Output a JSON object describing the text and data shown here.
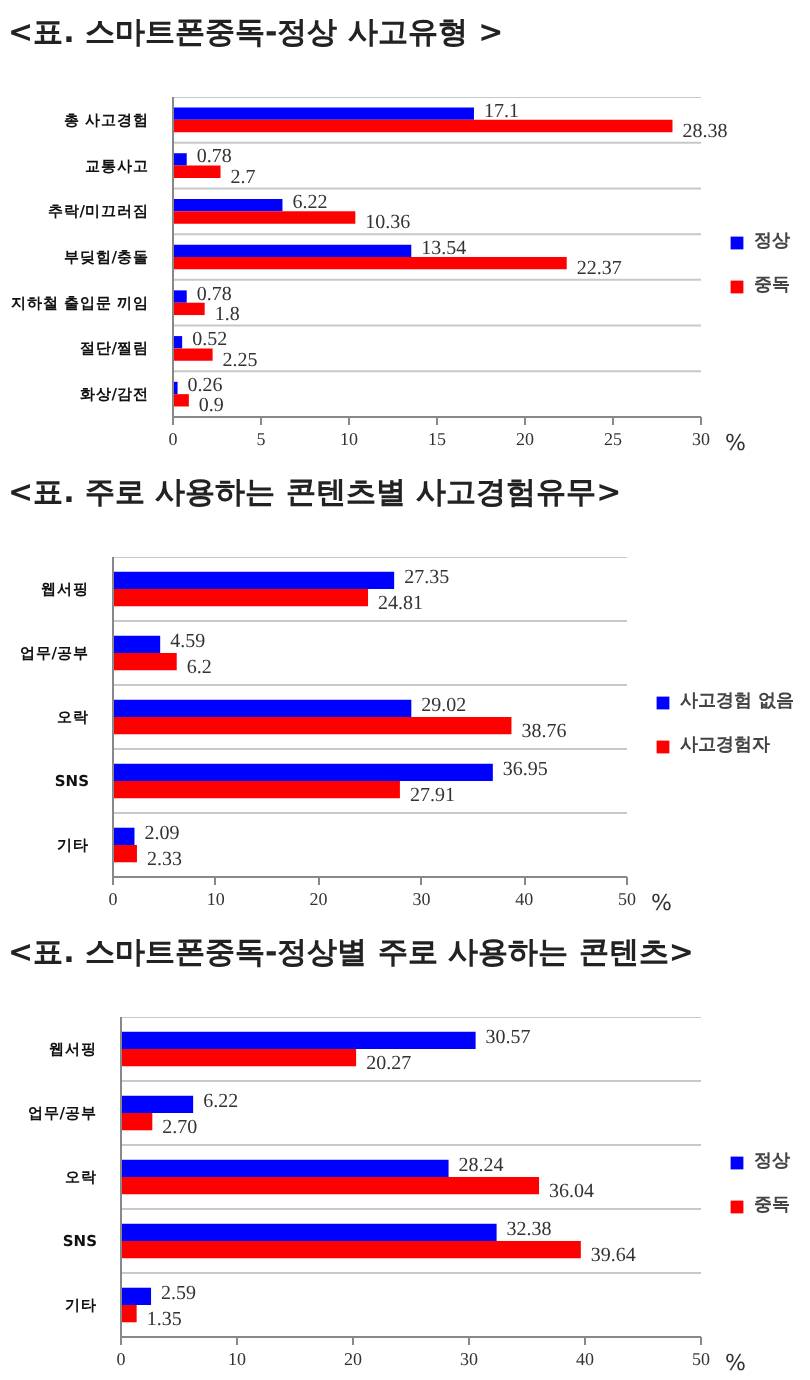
{
  "chart_data": [
    {
      "type": "bar",
      "orientation": "horizontal",
      "title": "<표. 스마트폰중독-정상 사고유형 >",
      "xlabel": "%",
      "categories": [
        "총 사고경험",
        "교통사고",
        "추락/미끄러짐",
        "부딪힘/충돌",
        "지하철 출입문 끼임",
        "절단/찔림",
        "화상/감전"
      ],
      "series": [
        {
          "name": "정상",
          "color": "#0000ff",
          "values": [
            17.1,
            0.78,
            6.22,
            13.54,
            0.78,
            0.52,
            0.26
          ]
        },
        {
          "name": "중독",
          "color": "#ff0000",
          "values": [
            28.38,
            2.7,
            10.36,
            22.37,
            1.8,
            2.25,
            0.9
          ]
        }
      ],
      "xlim": [
        0,
        30
      ],
      "xticks": [
        0,
        5,
        10,
        15,
        20,
        25,
        30
      ],
      "grid": "y",
      "legend": "right",
      "data_labels": true
    },
    {
      "type": "bar",
      "orientation": "horizontal",
      "title": "<표. 주로 사용하는 콘텐츠별 사고경험유무>",
      "xlabel": "%",
      "categories": [
        "웹서핑",
        "업무/공부",
        "오락",
        "SNS",
        "기타"
      ],
      "series": [
        {
          "name": "사고경험 없음",
          "color": "#0000ff",
          "values": [
            27.35,
            4.59,
            29.02,
            36.95,
            2.09
          ]
        },
        {
          "name": "사고경험자",
          "color": "#ff0000",
          "values": [
            24.81,
            6.2,
            38.76,
            27.91,
            2.33
          ]
        }
      ],
      "xlim": [
        0,
        50
      ],
      "xticks": [
        0,
        10,
        20,
        30,
        40,
        50
      ],
      "grid": "y",
      "legend": "right",
      "data_labels": true
    },
    {
      "type": "bar",
      "orientation": "horizontal",
      "title": "<표. 스마트폰중독-정상별 주로 사용하는 콘텐츠>",
      "xlabel": "%",
      "categories": [
        "웹서핑",
        "업무/공부",
        "오락",
        "SNS",
        "기타"
      ],
      "series": [
        {
          "name": "정상",
          "color": "#0000ff",
          "values": [
            30.57,
            6.22,
            28.24,
            32.38,
            2.59
          ],
          "value_labels": [
            "30.57",
            "6.22",
            "28.24",
            "32.38",
            "2.59"
          ]
        },
        {
          "name": "중독",
          "color": "#ff0000",
          "values": [
            20.27,
            2.7,
            36.04,
            39.64,
            1.35
          ],
          "value_labels": [
            "20.27",
            "2.70",
            "36.04",
            "39.64",
            "1.35"
          ]
        }
      ],
      "xlim": [
        0,
        50
      ],
      "xticks": [
        0,
        10,
        20,
        30,
        40,
        50
      ],
      "grid": "y",
      "legend": "right"
    }
  ]
}
